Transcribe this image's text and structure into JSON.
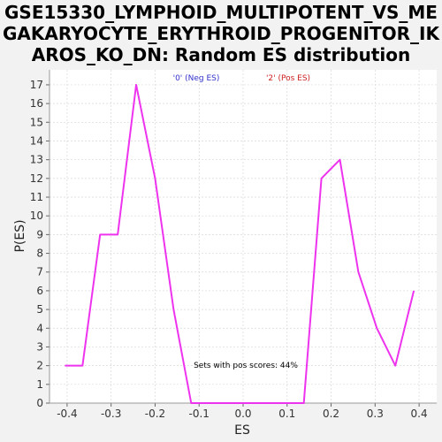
{
  "chart_data": {
    "type": "line",
    "title_lines": [
      "GSE15330_LYMPHOID_MULTIPOTENT_VS_ME",
      "GAKARYOCYTE_ERYTHROID_PROGENITOR_IK",
      "AROS_KO_DN: Random ES distribution"
    ],
    "xlabel": "ES",
    "ylabel": "P(ES)",
    "xlim": [
      -0.44,
      0.44
    ],
    "ylim": [
      0,
      17.8
    ],
    "x_ticks": [
      -0.4,
      -0.3,
      -0.2,
      -0.1,
      0.0,
      0.1,
      0.2,
      0.3,
      0.4
    ],
    "x_tick_labels": [
      "-0.4",
      "-0.3",
      "-0.2",
      "-0.1",
      "0.0",
      "0.1",
      "0.2",
      "0.3",
      "0.4"
    ],
    "y_ticks": [
      0,
      1,
      2,
      3,
      4,
      5,
      6,
      7,
      8,
      9,
      10,
      11,
      12,
      13,
      14,
      15,
      16,
      17
    ],
    "y_tick_labels": [
      "0",
      "1",
      "2",
      "3",
      "4",
      "5",
      "6",
      "7",
      "8",
      "9",
      "10",
      "11",
      "12",
      "13",
      "14",
      "15",
      "16",
      "17"
    ],
    "grid": true,
    "legend": [
      {
        "label": "'0' (Neg ES)",
        "color": "#3333cc"
      },
      {
        "label": "'2' (Pos ES)",
        "color": "#cc2222"
      }
    ],
    "annotation": "Sets with pos scores: 44%",
    "series": [
      {
        "color": "#ee33ee",
        "x": [
          -0.405,
          -0.365,
          -0.325,
          -0.285,
          -0.243,
          -0.2,
          -0.158,
          -0.118,
          -0.077,
          -0.035,
          0.006,
          0.048,
          0.09,
          0.138,
          0.178,
          0.22,
          0.262,
          0.304,
          0.346,
          0.388
        ],
        "y": [
          2,
          2,
          9,
          9,
          17,
          12,
          5,
          0,
          0,
          0,
          0,
          0,
          0,
          0,
          12,
          13,
          7,
          4,
          2,
          6
        ]
      }
    ]
  }
}
